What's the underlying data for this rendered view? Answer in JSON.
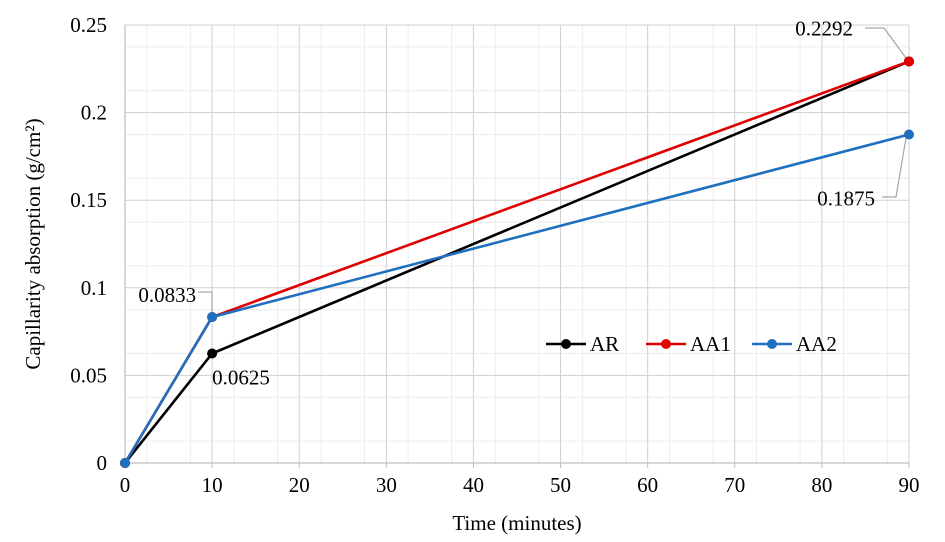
{
  "chart_data": {
    "type": "line",
    "title": "",
    "xlabel": "Time (minutes)",
    "ylabel": "Capillarity absorption (g/cm²)",
    "xlim": [
      0,
      90
    ],
    "ylim": [
      0,
      0.25
    ],
    "x_ticks": [
      "0",
      "10",
      "20",
      "30",
      "40",
      "50",
      "60",
      "70",
      "80",
      "90"
    ],
    "y_ticks": [
      "0",
      "0.05",
      "0.1",
      "0.15",
      "0.2",
      "0.25"
    ],
    "grid": true,
    "legend_position": "right-center",
    "series": [
      {
        "name": "AR",
        "color": "#000000",
        "x": [
          0,
          10,
          90
        ],
        "y": [
          0,
          0.0625,
          0.2292
        ]
      },
      {
        "name": "AA1",
        "color": "#e00000",
        "x": [
          0,
          10,
          90
        ],
        "y": [
          0,
          0.0833,
          0.2292
        ]
      },
      {
        "name": "AA2",
        "color": "#1f6fbf",
        "x": [
          0,
          10,
          90
        ],
        "y": [
          0,
          0.0833,
          0.1875
        ]
      }
    ],
    "data_labels": [
      {
        "text": "0.0625",
        "x": 10,
        "y": 0.0625
      },
      {
        "text": "0.0833",
        "x": 10,
        "y": 0.0833
      },
      {
        "text": "0.2292",
        "x": 90,
        "y": 0.2292
      },
      {
        "text": "0.1875",
        "x": 90,
        "y": 0.1875
      }
    ]
  }
}
